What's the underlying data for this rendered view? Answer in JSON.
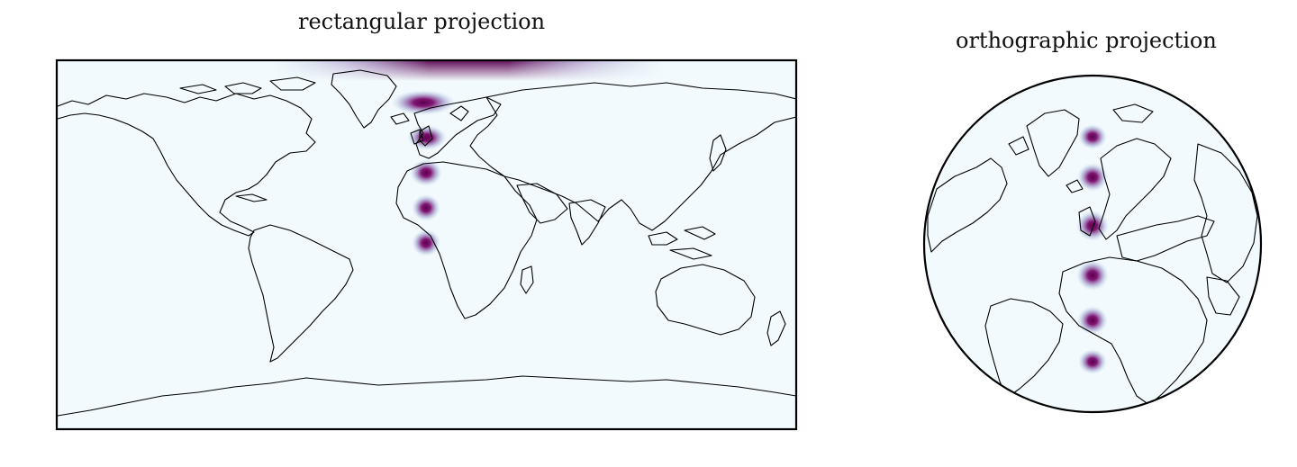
{
  "figure": {
    "left_title": "rectangular projection",
    "right_title": "orthographic projection"
  },
  "colors": {
    "ocean": "#f3fafd",
    "blob_core": "#7a0a6a",
    "blob_mid": "#8c6bb1",
    "blob_edge": "#9ebcda",
    "coastline": "#000000"
  },
  "layers": {
    "coastlines": true,
    "blob_colormap": "BuPu"
  }
}
